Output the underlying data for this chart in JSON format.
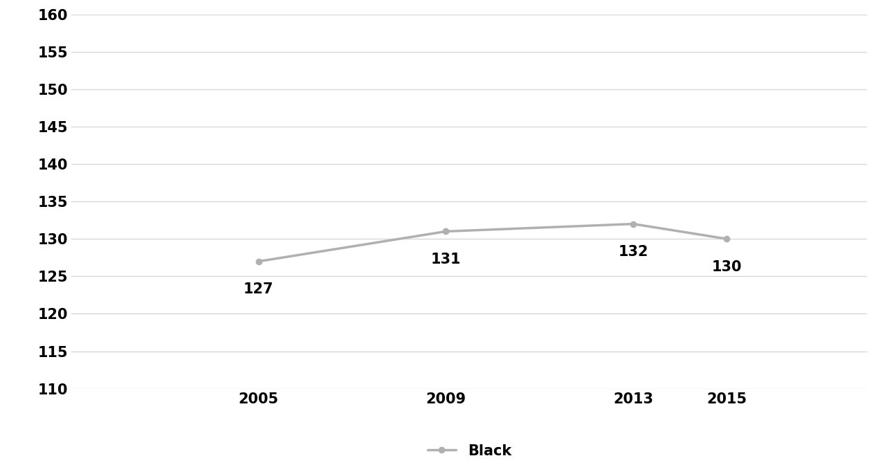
{
  "years": [
    2005,
    2009,
    2013,
    2015
  ],
  "black_values": [
    127,
    131,
    132,
    130
  ],
  "line_color": "#b0b0b0",
  "marker_color": "#b0b0b0",
  "ylim": [
    110,
    160
  ],
  "yticks": [
    110,
    115,
    120,
    125,
    130,
    135,
    140,
    145,
    150,
    155,
    160
  ],
  "xticks": [
    2005,
    2009,
    2013,
    2015
  ],
  "legend_label": "Black",
  "tick_fontsize": 15,
  "annotation_fontsize": 15,
  "legend_fontsize": 15,
  "grid_color": "#d8d8d8",
  "background_color": "#ffffff",
  "marker_style": "o",
  "marker_size": 6,
  "line_width": 2.5,
  "xlim": [
    2001,
    2018
  ]
}
